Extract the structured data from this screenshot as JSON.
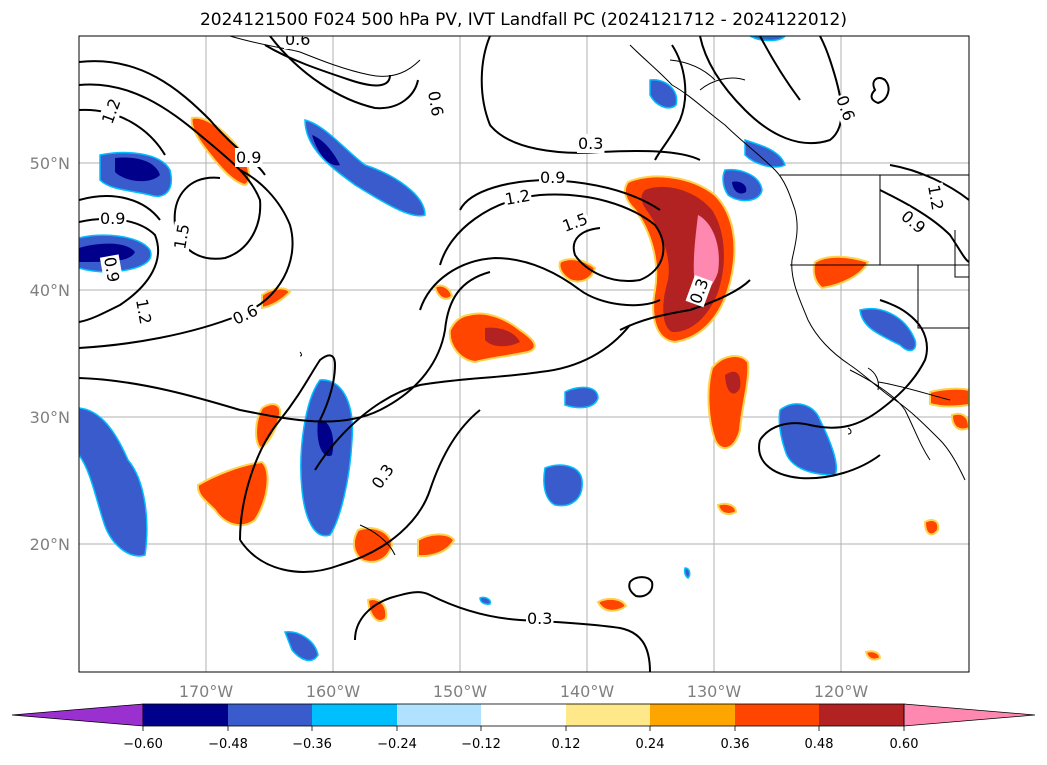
{
  "title": "2024121500 F024 500 hPa PV, IVT Landfall PC (2024121712 - 2024122012)",
  "lon_labels": [
    "170°W",
    "160°W",
    "150°W",
    "140°W",
    "130°W",
    "120°W"
  ],
  "lat_labels": [
    "50°N",
    "40°N",
    "30°N",
    "20°N"
  ],
  "colorbar": {
    "ticks": [
      "−0.60",
      "−0.48",
      "−0.36",
      "−0.24",
      "−0.12",
      "0.12",
      "0.24",
      "0.36",
      "0.48",
      "0.60"
    ],
    "colors": [
      "#9b30d0",
      "#00008b",
      "#3a5bcc",
      "#00bfff",
      "#b0e2ff",
      "#ffffff",
      "#ffe88a",
      "#ffa500",
      "#ff4500",
      "#b22222",
      "#ff88b0"
    ]
  },
  "contour_labels": [
    {
      "text": "0.3"
    },
    {
      "text": "0.3"
    },
    {
      "text": "0.3"
    },
    {
      "text": "0.3"
    },
    {
      "text": "0.6"
    },
    {
      "text": "0.6"
    },
    {
      "text": "0.6"
    },
    {
      "text": "0.6"
    },
    {
      "text": "0.9"
    },
    {
      "text": "0.9"
    },
    {
      "text": "0.9"
    },
    {
      "text": "0.9"
    },
    {
      "text": "0.9"
    },
    {
      "text": "1.2"
    },
    {
      "text": "1.2"
    },
    {
      "text": "1.2"
    },
    {
      "text": "1.2"
    },
    {
      "text": "1.5"
    },
    {
      "text": "1.5"
    }
  ]
}
